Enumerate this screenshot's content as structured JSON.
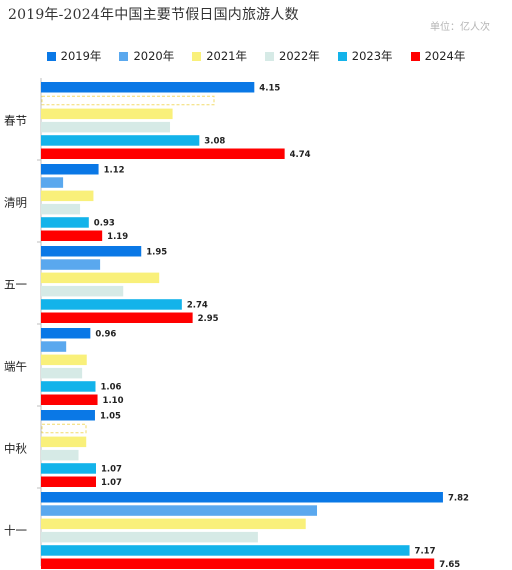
{
  "chart_data": {
    "type": "bar",
    "orientation": "horizontal",
    "title": "2019年-2024年中国主要节假日国内旅游人数",
    "unit": "单位：亿人次",
    "categories": [
      "春节",
      "清明",
      "五一",
      "端午",
      "中秋",
      "十一"
    ],
    "series": [
      {
        "name": "2019年",
        "color": "#0a78e6",
        "values": [
          4.15,
          1.12,
          1.95,
          0.96,
          1.05,
          7.82
        ],
        "labels": [
          "4.15",
          "1.12",
          "1.95",
          "0.96",
          "1.05",
          "7.82"
        ]
      },
      {
        "name": "2020年",
        "color": "#5aa8ee",
        "values": [
          null,
          0.43,
          1.15,
          0.49,
          null,
          5.37
        ],
        "labels": [
          "",
          "",
          "",
          "",
          "",
          ""
        ]
      },
      {
        "name": "2021年",
        "color": "#f9f07a",
        "values": [
          2.56,
          1.02,
          2.3,
          0.89,
          0.88,
          5.15
        ],
        "labels": [
          "",
          "",
          "",
          "",
          "",
          ""
        ]
      },
      {
        "name": "2022年",
        "color": "#d6eae6",
        "values": [
          2.51,
          0.76,
          1.6,
          0.8,
          0.73,
          4.22
        ],
        "labels": [
          "",
          "",
          "",
          "",
          "",
          ""
        ]
      },
      {
        "name": "2023年",
        "color": "#13b3ea",
        "values": [
          3.08,
          0.93,
          2.74,
          1.06,
          1.07,
          7.17
        ],
        "labels": [
          "3.08",
          "0.93",
          "2.74",
          "1.06",
          "1.07",
          "7.17"
        ]
      },
      {
        "name": "2024年",
        "color": "#ff0000",
        "values": [
          4.74,
          1.19,
          2.95,
          1.1,
          1.07,
          7.65
        ],
        "labels": [
          "4.74",
          "1.19",
          "2.95",
          "1.10",
          "1.07",
          "7.65"
        ]
      }
    ],
    "xlim": [
      0,
      8.5
    ],
    "legend": "top-center",
    "grid": false
  }
}
